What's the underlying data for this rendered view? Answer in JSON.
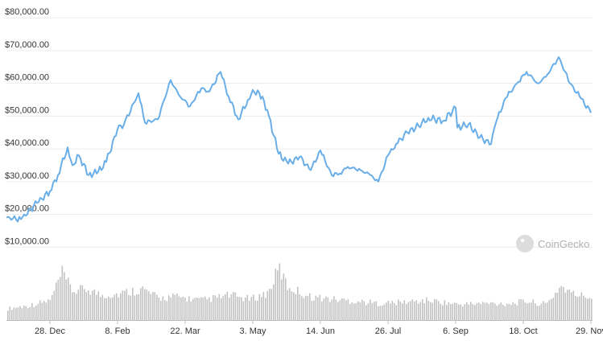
{
  "chart_data": {
    "type": "line",
    "title": "",
    "xlabel": "",
    "ylabel": "",
    "y_tick_labels": [
      "$10,000.00",
      "$20,000.00",
      "$30,000.00",
      "$40,000.00",
      "$50,000.00",
      "$60,000.00",
      "$70,000.00",
      "$80,000.00"
    ],
    "y_ticks": [
      10000,
      20000,
      30000,
      40000,
      50000,
      60000,
      70000,
      80000
    ],
    "ylim": [
      0,
      83000
    ],
    "x_tick_labels": [
      "28. Dec",
      "8. Feb",
      "22. Mar",
      "3. May",
      "14. Jun",
      "26. Jul",
      "6. Sep",
      "18. Oct",
      "29. Nov"
    ],
    "x_ticks": [
      "2020-12-28",
      "2021-02-08",
      "2021-03-22",
      "2021-05-03",
      "2021-06-14",
      "2021-07-26",
      "2021-09-06",
      "2021-10-18",
      "2021-11-29"
    ],
    "x_range": [
      "2020-12-01",
      "2021-11-30"
    ],
    "grid": true,
    "line_color": "#6aaee8",
    "series": [
      {
        "name": "",
        "x": [
          "2020-12-01",
          "2020-12-10",
          "2020-12-20",
          "2020-12-28",
          "2021-01-02",
          "2021-01-08",
          "2021-01-11",
          "2021-01-15",
          "2021-01-21",
          "2021-01-27",
          "2021-02-01",
          "2021-02-08",
          "2021-02-12",
          "2021-02-21",
          "2021-02-25",
          "2021-03-05",
          "2021-03-13",
          "2021-03-18",
          "2021-03-25",
          "2021-04-01",
          "2021-04-06",
          "2021-04-13",
          "2021-04-18",
          "2021-04-24",
          "2021-04-30",
          "2021-05-03",
          "2021-05-09",
          "2021-05-13",
          "2021-05-19",
          "2021-05-25",
          "2021-06-01",
          "2021-06-08",
          "2021-06-14",
          "2021-06-21",
          "2021-06-26",
          "2021-07-01",
          "2021-07-09",
          "2021-07-15",
          "2021-07-20",
          "2021-07-26",
          "2021-07-31",
          "2021-08-07",
          "2021-08-14",
          "2021-08-20",
          "2021-08-29",
          "2021-09-06",
          "2021-09-07",
          "2021-09-14",
          "2021-09-21",
          "2021-09-28",
          "2021-10-01",
          "2021-10-07",
          "2021-10-15",
          "2021-10-20",
          "2021-10-27",
          "2021-11-01",
          "2021-11-09",
          "2021-11-16",
          "2021-11-22",
          "2021-11-29"
        ],
        "values": [
          19000,
          18500,
          23500,
          27000,
          32000,
          40500,
          35000,
          38000,
          32000,
          33000,
          36000,
          46000,
          47500,
          57000,
          48000,
          49000,
          61000,
          56500,
          53000,
          58500,
          57500,
          63500,
          56000,
          49000,
          55000,
          58000,
          56000,
          50000,
          38500,
          35500,
          37500,
          33500,
          39500,
          32000,
          32500,
          34500,
          33500,
          32000,
          30000,
          38000,
          41500,
          45000,
          47000,
          49500,
          48500,
          52500,
          46500,
          47500,
          43500,
          41500,
          48000,
          55500,
          60500,
          63500,
          60000,
          62000,
          68000,
          60000,
          56000,
          51000
        ]
      }
    ],
    "volume": {
      "color": "#c2c2c2",
      "x": [
        "2020-12-01",
        "2020-12-15",
        "2020-12-28",
        "2021-01-04",
        "2021-01-11",
        "2021-01-20",
        "2021-01-28",
        "2021-02-08",
        "2021-02-23",
        "2021-03-05",
        "2021-03-15",
        "2021-04-01",
        "2021-04-14",
        "2021-04-18",
        "2021-05-01",
        "2021-05-12",
        "2021-05-19",
        "2021-05-24",
        "2021-06-07",
        "2021-06-22",
        "2021-07-10",
        "2021-07-20",
        "2021-08-02",
        "2021-08-20",
        "2021-09-07",
        "2021-09-21",
        "2021-10-10",
        "2021-10-20",
        "2021-11-01",
        "2021-11-10",
        "2021-11-17",
        "2021-11-29"
      ],
      "values": [
        22,
        28,
        38,
        90,
        55,
        60,
        48,
        50,
        60,
        42,
        45,
        38,
        45,
        48,
        40,
        52,
        100,
        65,
        45,
        40,
        35,
        32,
        34,
        38,
        30,
        32,
        32,
        36,
        30,
        66,
        50,
        44
      ]
    }
  },
  "watermark": {
    "text": "CoinGecko",
    "icon": "gecko-logo-icon"
  }
}
